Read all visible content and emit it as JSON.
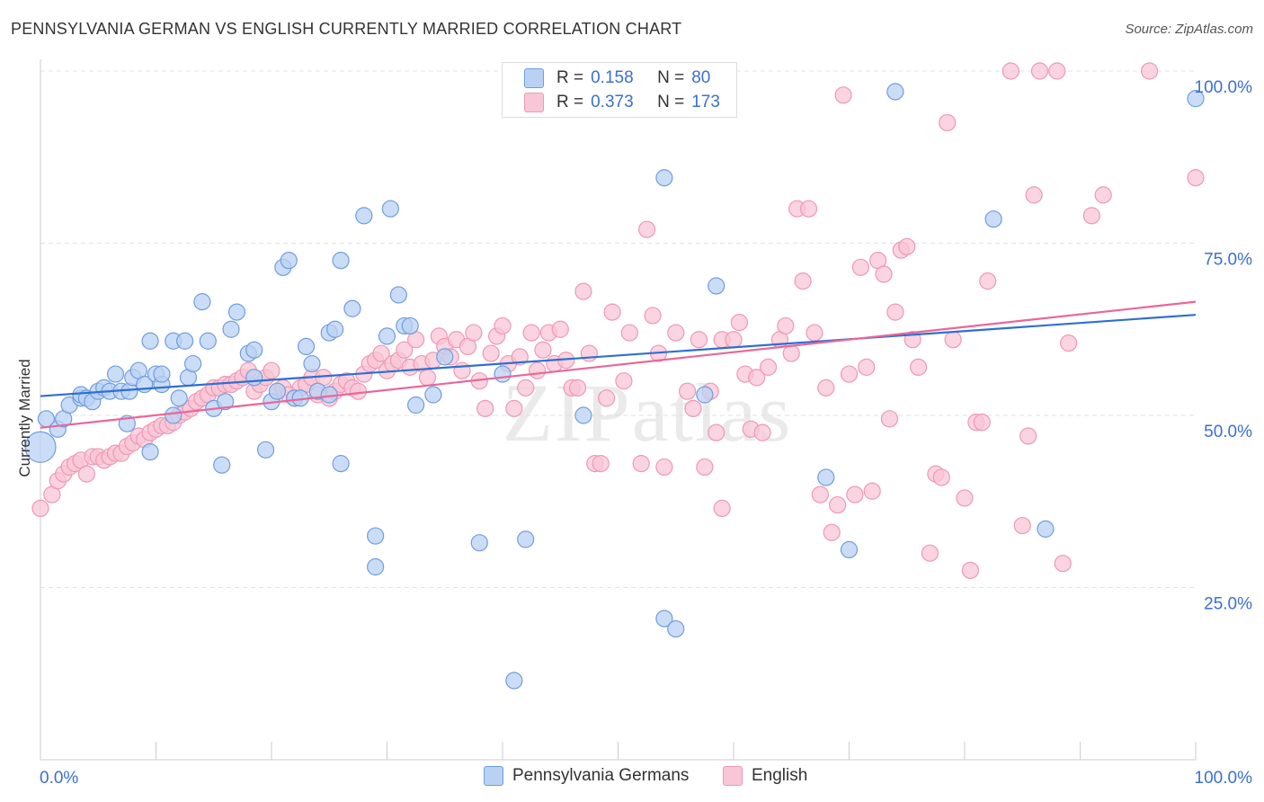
{
  "header": {
    "title": "PENNSYLVANIA GERMAN VS ENGLISH CURRENTLY MARRIED CORRELATION CHART",
    "source": "Source: ZipAtlas.com"
  },
  "legend_top": {
    "rows": [
      {
        "r_label": "R =",
        "r_value": "0.158",
        "n_label": "N =",
        "n_value": "80",
        "color": "#7aa4e6"
      },
      {
        "r_label": "R =",
        "r_value": "0.373",
        "n_label": "N =",
        "n_value": "173",
        "color": "#f29bb8"
      }
    ]
  },
  "legend_bottom": {
    "items": [
      {
        "label": "Pennsylvania Germans",
        "color": "#7aa4e6"
      },
      {
        "label": "English",
        "color": "#f29bb8"
      }
    ]
  },
  "watermark": "ZIPatlas",
  "colors": {
    "blue_fill": "#b9d1f3",
    "blue_stroke": "#6f9de0",
    "blue_line": "#2f6fd1",
    "pink_fill": "#f8c6d6",
    "pink_stroke": "#ee98b5",
    "pink_line": "#e8679a",
    "axis_label": "#3b6fd0",
    "grid": "#e2e2e2"
  },
  "chart_data": {
    "type": "scatter",
    "title": "PENNSYLVANIA GERMAN VS ENGLISH CURRENTLY MARRIED CORRELATION CHART",
    "xlabel": "",
    "ylabel": "Currently Married",
    "xlim": [
      0,
      100
    ],
    "ylim": [
      0,
      100
    ],
    "x_tick_labels": [
      "0.0%",
      "100.0%"
    ],
    "y_ticks": [
      25,
      50,
      75,
      100
    ],
    "y_tick_labels": [
      "25.0%",
      "50.0%",
      "75.0%",
      "100.0%"
    ],
    "grid": true,
    "legend_position": "top-center",
    "series": [
      {
        "name": "Pennsylvania Germans",
        "R": 0.158,
        "N": 80,
        "trend": [
          [
            0,
            52.8
          ],
          [
            100,
            64.6
          ]
        ],
        "points": [
          [
            0,
            45.4
          ],
          [
            0.5,
            49.5
          ],
          [
            1.5,
            48
          ],
          [
            2,
            49.5
          ],
          [
            2.5,
            51.5
          ],
          [
            3.5,
            52.5
          ],
          [
            3.5,
            53
          ],
          [
            4,
            52.5
          ],
          [
            4.5,
            52
          ],
          [
            5,
            53.5
          ],
          [
            5.5,
            54
          ],
          [
            6,
            53.5
          ],
          [
            6.5,
            56
          ],
          [
            7,
            53.5
          ],
          [
            7.5,
            48.8
          ],
          [
            7.7,
            53.5
          ],
          [
            8,
            55.5
          ],
          [
            8.5,
            56.5
          ],
          [
            9,
            54.5
          ],
          [
            9.5,
            44.7
          ],
          [
            9.5,
            60.8
          ],
          [
            10,
            56
          ],
          [
            10.5,
            54.5
          ],
          [
            10.5,
            56
          ],
          [
            11.5,
            50
          ],
          [
            11.5,
            60.8
          ],
          [
            12,
            52.5
          ],
          [
            12.5,
            60.8
          ],
          [
            12.8,
            55.5
          ],
          [
            13.2,
            57.5
          ],
          [
            14,
            66.5
          ],
          [
            14.5,
            60.8
          ],
          [
            15,
            51
          ],
          [
            15.7,
            42.8
          ],
          [
            16,
            52
          ],
          [
            16.5,
            62.5
          ],
          [
            17,
            65
          ],
          [
            18,
            59
          ],
          [
            18.5,
            59.5
          ],
          [
            18.5,
            55.5
          ],
          [
            19.5,
            45
          ],
          [
            20,
            52
          ],
          [
            20.5,
            53.5
          ],
          [
            21,
            71.5
          ],
          [
            21.5,
            72.5
          ],
          [
            22,
            52.5
          ],
          [
            22.5,
            52.5
          ],
          [
            23,
            60
          ],
          [
            23.5,
            57.5
          ],
          [
            24,
            53.5
          ],
          [
            25,
            53
          ],
          [
            25,
            62
          ],
          [
            25.5,
            62.5
          ],
          [
            26,
            72.5
          ],
          [
            26,
            43
          ],
          [
            27,
            65.5
          ],
          [
            28,
            79
          ],
          [
            29,
            32.5
          ],
          [
            29,
            28
          ],
          [
            30,
            61.5
          ],
          [
            30.3,
            80
          ],
          [
            31,
            67.5
          ],
          [
            31.5,
            63
          ],
          [
            32,
            63
          ],
          [
            32.5,
            51.5
          ],
          [
            34,
            53
          ],
          [
            35,
            58.5
          ],
          [
            38,
            31.5
          ],
          [
            40,
            56
          ],
          [
            41,
            11.5
          ],
          [
            42,
            32
          ],
          [
            47,
            50
          ],
          [
            54,
            20.5
          ],
          [
            54,
            84.5
          ],
          [
            55,
            19
          ],
          [
            57.5,
            53
          ],
          [
            58.5,
            68.8
          ],
          [
            68,
            41
          ],
          [
            70,
            30.5
          ],
          [
            74,
            97
          ],
          [
            82.5,
            78.5
          ],
          [
            87,
            33.5
          ],
          [
            100,
            96
          ]
        ]
      },
      {
        "name": "English",
        "R": 0.373,
        "N": 173,
        "trend": [
          [
            0,
            48.2
          ],
          [
            100,
            66.5
          ]
        ],
        "points": [
          [
            0,
            36.5
          ],
          [
            1,
            38.5
          ],
          [
            1.5,
            40.5
          ],
          [
            2,
            41.5
          ],
          [
            2.5,
            42.5
          ],
          [
            3,
            43
          ],
          [
            3.5,
            43.5
          ],
          [
            4,
            41.5
          ],
          [
            4.5,
            44
          ],
          [
            5,
            44
          ],
          [
            5.5,
            43.5
          ],
          [
            6,
            44
          ],
          [
            6.5,
            44.5
          ],
          [
            7,
            44.5
          ],
          [
            7.5,
            45.5
          ],
          [
            8,
            46
          ],
          [
            8.5,
            47
          ],
          [
            9,
            46.5
          ],
          [
            9.5,
            47.5
          ],
          [
            10,
            48
          ],
          [
            10.5,
            48.5
          ],
          [
            11,
            48.5
          ],
          [
            11.5,
            49
          ],
          [
            12,
            50
          ],
          [
            12.5,
            50.5
          ],
          [
            13,
            51
          ],
          [
            13.5,
            52
          ],
          [
            14,
            52.5
          ],
          [
            14.5,
            53
          ],
          [
            15,
            54
          ],
          [
            15.5,
            54
          ],
          [
            16,
            54.5
          ],
          [
            16.5,
            54.5
          ],
          [
            17,
            55
          ],
          [
            17.5,
            55.5
          ],
          [
            18,
            56.5
          ],
          [
            18.5,
            53.5
          ],
          [
            19,
            54.5
          ],
          [
            19.5,
            55.5
          ],
          [
            20,
            56.5
          ],
          [
            20.5,
            53.5
          ],
          [
            21,
            54
          ],
          [
            21.5,
            53
          ],
          [
            22,
            52.5
          ],
          [
            22.5,
            54
          ],
          [
            23,
            54.5
          ],
          [
            23.5,
            55.5
          ],
          [
            24,
            53
          ],
          [
            24.5,
            55.5
          ],
          [
            25,
            52.5
          ],
          [
            25.5,
            53.5
          ],
          [
            26,
            54.5
          ],
          [
            26.5,
            55
          ],
          [
            27,
            54
          ],
          [
            27.5,
            53.5
          ],
          [
            28,
            56
          ],
          [
            28.5,
            57.5
          ],
          [
            29,
            58
          ],
          [
            29.5,
            59
          ],
          [
            30,
            56.5
          ],
          [
            30.5,
            57.5
          ],
          [
            31,
            58
          ],
          [
            31.5,
            59.5
          ],
          [
            32,
            57
          ],
          [
            32.5,
            61
          ],
          [
            33,
            57.5
          ],
          [
            33.5,
            55.5
          ],
          [
            34,
            58
          ],
          [
            34.5,
            61.5
          ],
          [
            35,
            60
          ],
          [
            35.5,
            58.5
          ],
          [
            36,
            61
          ],
          [
            36.5,
            56.5
          ],
          [
            37,
            60
          ],
          [
            37.5,
            62
          ],
          [
            38,
            55
          ],
          [
            38.5,
            51
          ],
          [
            39,
            59
          ],
          [
            39.5,
            61.5
          ],
          [
            40,
            63
          ],
          [
            40.5,
            57.5
          ],
          [
            41,
            51
          ],
          [
            41.5,
            58.5
          ],
          [
            42,
            54
          ],
          [
            42.5,
            62
          ],
          [
            43,
            56.5
          ],
          [
            43.5,
            59.5
          ],
          [
            44,
            62
          ],
          [
            44.5,
            57.5
          ],
          [
            45,
            62.5
          ],
          [
            45.5,
            58
          ],
          [
            46,
            54
          ],
          [
            46.5,
            54
          ],
          [
            47,
            68
          ],
          [
            47.5,
            59
          ],
          [
            48,
            43
          ],
          [
            48.5,
            43
          ],
          [
            49,
            52.5
          ],
          [
            49.5,
            65
          ],
          [
            50.5,
            55
          ],
          [
            51,
            62
          ],
          [
            52,
            43
          ],
          [
            52.5,
            77
          ],
          [
            53,
            64.5
          ],
          [
            53.5,
            59
          ],
          [
            54,
            42.5
          ],
          [
            55,
            62
          ],
          [
            56,
            53.5
          ],
          [
            56.5,
            51
          ],
          [
            57,
            61
          ],
          [
            57.5,
            42.5
          ],
          [
            58,
            53.5
          ],
          [
            58.5,
            47.5
          ],
          [
            59,
            36.5
          ],
          [
            59,
            61
          ],
          [
            60,
            61
          ],
          [
            60.5,
            63.5
          ],
          [
            61,
            56
          ],
          [
            61.5,
            48
          ],
          [
            62,
            55.5
          ],
          [
            62.5,
            47.5
          ],
          [
            63,
            57
          ],
          [
            64,
            61
          ],
          [
            64.5,
            63
          ],
          [
            65,
            59
          ],
          [
            65.5,
            80
          ],
          [
            66,
            69.5
          ],
          [
            66.5,
            80
          ],
          [
            67,
            62
          ],
          [
            67.5,
            38.5
          ],
          [
            68,
            54
          ],
          [
            68.5,
            33
          ],
          [
            69,
            37
          ],
          [
            69.5,
            96.5
          ],
          [
            70,
            56
          ],
          [
            70.5,
            38.5
          ],
          [
            71,
            71.5
          ],
          [
            71.5,
            57
          ],
          [
            72,
            39
          ],
          [
            72.5,
            72.5
          ],
          [
            73,
            70.5
          ],
          [
            73.5,
            49.5
          ],
          [
            74,
            65
          ],
          [
            74.5,
            74
          ],
          [
            75,
            74.5
          ],
          [
            75.5,
            61
          ],
          [
            76,
            57
          ],
          [
            77,
            30
          ],
          [
            77.5,
            41.5
          ],
          [
            78,
            41
          ],
          [
            78.5,
            92.5
          ],
          [
            79,
            61
          ],
          [
            80,
            38
          ],
          [
            80.5,
            27.5
          ],
          [
            81,
            49
          ],
          [
            81.5,
            49
          ],
          [
            82,
            69.5
          ],
          [
            84,
            100
          ],
          [
            85,
            34
          ],
          [
            85.5,
            47
          ],
          [
            86,
            82
          ],
          [
            86.5,
            100
          ],
          [
            88,
            100
          ],
          [
            88.5,
            28.5
          ],
          [
            89,
            60.5
          ],
          [
            91,
            79
          ],
          [
            92,
            82
          ],
          [
            96,
            100
          ],
          [
            100,
            84.5
          ]
        ]
      }
    ]
  }
}
